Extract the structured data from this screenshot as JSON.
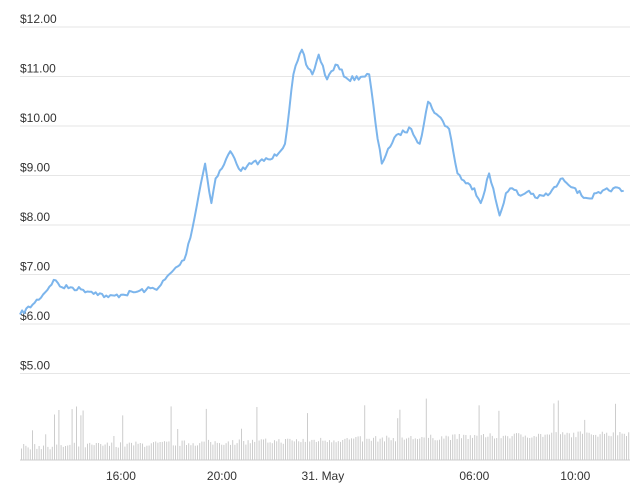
{
  "chart_data": {
    "type": "line",
    "title": "",
    "xlabel": "",
    "ylabel": "",
    "line_color": "#7cb5ec",
    "volume_color": "#cccccc",
    "grid": true,
    "ylim": [
      5.0,
      12.0
    ],
    "y_ticks": [
      {
        "value": 12,
        "label": "$12.00"
      },
      {
        "value": 11,
        "label": "$11.00"
      },
      {
        "value": 10,
        "label": "$10.00"
      },
      {
        "value": 9,
        "label": "$9.00"
      },
      {
        "value": 8,
        "label": "$8.00"
      },
      {
        "value": 7,
        "label": "$7.00"
      },
      {
        "value": 6,
        "label": "$6.00"
      },
      {
        "value": 5,
        "label": "$5.00"
      }
    ],
    "xlim": [
      "2024-05-30 12:00",
      "2024-05-31 12:10"
    ],
    "x_ticks": [
      {
        "value": "2024-05-30 16:00",
        "label": "16:00"
      },
      {
        "value": "2024-05-30 20:00",
        "label": "20:00"
      },
      {
        "value": "2024-05-31 00:00",
        "label": "31. May"
      },
      {
        "value": "2024-05-31 06:00",
        "label": "06:00"
      },
      {
        "value": "2024-05-31 10:00",
        "label": "10:00"
      }
    ],
    "series": [
      {
        "x": [
          "2024-05-30 12:00",
          "2024-05-30 12:30",
          "2024-05-30 13:00",
          "2024-05-30 13:20",
          "2024-05-30 13:40",
          "2024-05-30 14:00",
          "2024-05-30 14:30",
          "2024-05-30 15:00",
          "2024-05-30 15:30",
          "2024-05-30 16:00",
          "2024-05-30 16:30",
          "2024-05-30 17:00",
          "2024-05-30 17:30",
          "2024-05-30 18:00",
          "2024-05-30 18:30",
          "2024-05-30 18:50",
          "2024-05-30 19:10",
          "2024-05-30 19:20",
          "2024-05-30 19:35",
          "2024-05-30 19:45",
          "2024-05-30 20:00",
          "2024-05-30 20:20",
          "2024-05-30 20:30",
          "2024-05-30 20:45",
          "2024-05-30 21:00",
          "2024-05-30 21:30",
          "2024-05-30 22:00",
          "2024-05-30 22:30",
          "2024-05-30 22:50",
          "2024-05-30 23:10",
          "2024-05-30 23:20",
          "2024-05-30 23:35",
          "2024-05-30 23:50",
          "2024-05-31 00:10",
          "2024-05-31 00:30",
          "2024-05-31 01:00",
          "2024-05-31 01:30",
          "2024-05-31 01:50",
          "2024-05-31 02:10",
          "2024-05-31 02:20",
          "2024-05-31 02:35",
          "2024-05-31 03:00",
          "2024-05-31 03:30",
          "2024-05-31 03:50",
          "2024-05-31 04:10",
          "2024-05-31 04:30",
          "2024-05-31 05:00",
          "2024-05-31 05:20",
          "2024-05-31 05:40",
          "2024-05-31 06:00",
          "2024-05-31 06:15",
          "2024-05-31 06:35",
          "2024-05-31 07:00",
          "2024-05-31 07:15",
          "2024-05-31 07:30",
          "2024-05-31 07:50",
          "2024-05-31 08:10",
          "2024-05-31 08:30",
          "2024-05-31 09:00",
          "2024-05-31 09:30",
          "2024-05-31 10:00",
          "2024-05-31 10:15",
          "2024-05-31 10:30",
          "2024-05-31 11:00",
          "2024-05-31 11:30",
          "2024-05-31 11:55"
        ],
        "y": [
          6.05,
          6.25,
          6.5,
          6.75,
          6.6,
          6.6,
          6.55,
          6.5,
          6.4,
          6.45,
          6.5,
          6.55,
          6.6,
          6.9,
          7.15,
          7.8,
          8.7,
          9.1,
          8.3,
          8.8,
          9.0,
          9.35,
          9.2,
          8.95,
          9.05,
          9.15,
          9.2,
          9.5,
          10.9,
          11.4,
          11.1,
          10.9,
          11.3,
          10.8,
          11.1,
          10.8,
          10.85,
          10.9,
          9.6,
          9.1,
          9.4,
          9.7,
          9.8,
          9.5,
          10.35,
          10.1,
          9.8,
          8.9,
          8.7,
          8.6,
          8.3,
          8.9,
          8.05,
          8.5,
          8.6,
          8.45,
          8.55,
          8.4,
          8.5,
          8.8,
          8.6,
          8.45,
          8.4,
          8.5,
          8.6,
          8.55
        ]
      }
    ]
  }
}
